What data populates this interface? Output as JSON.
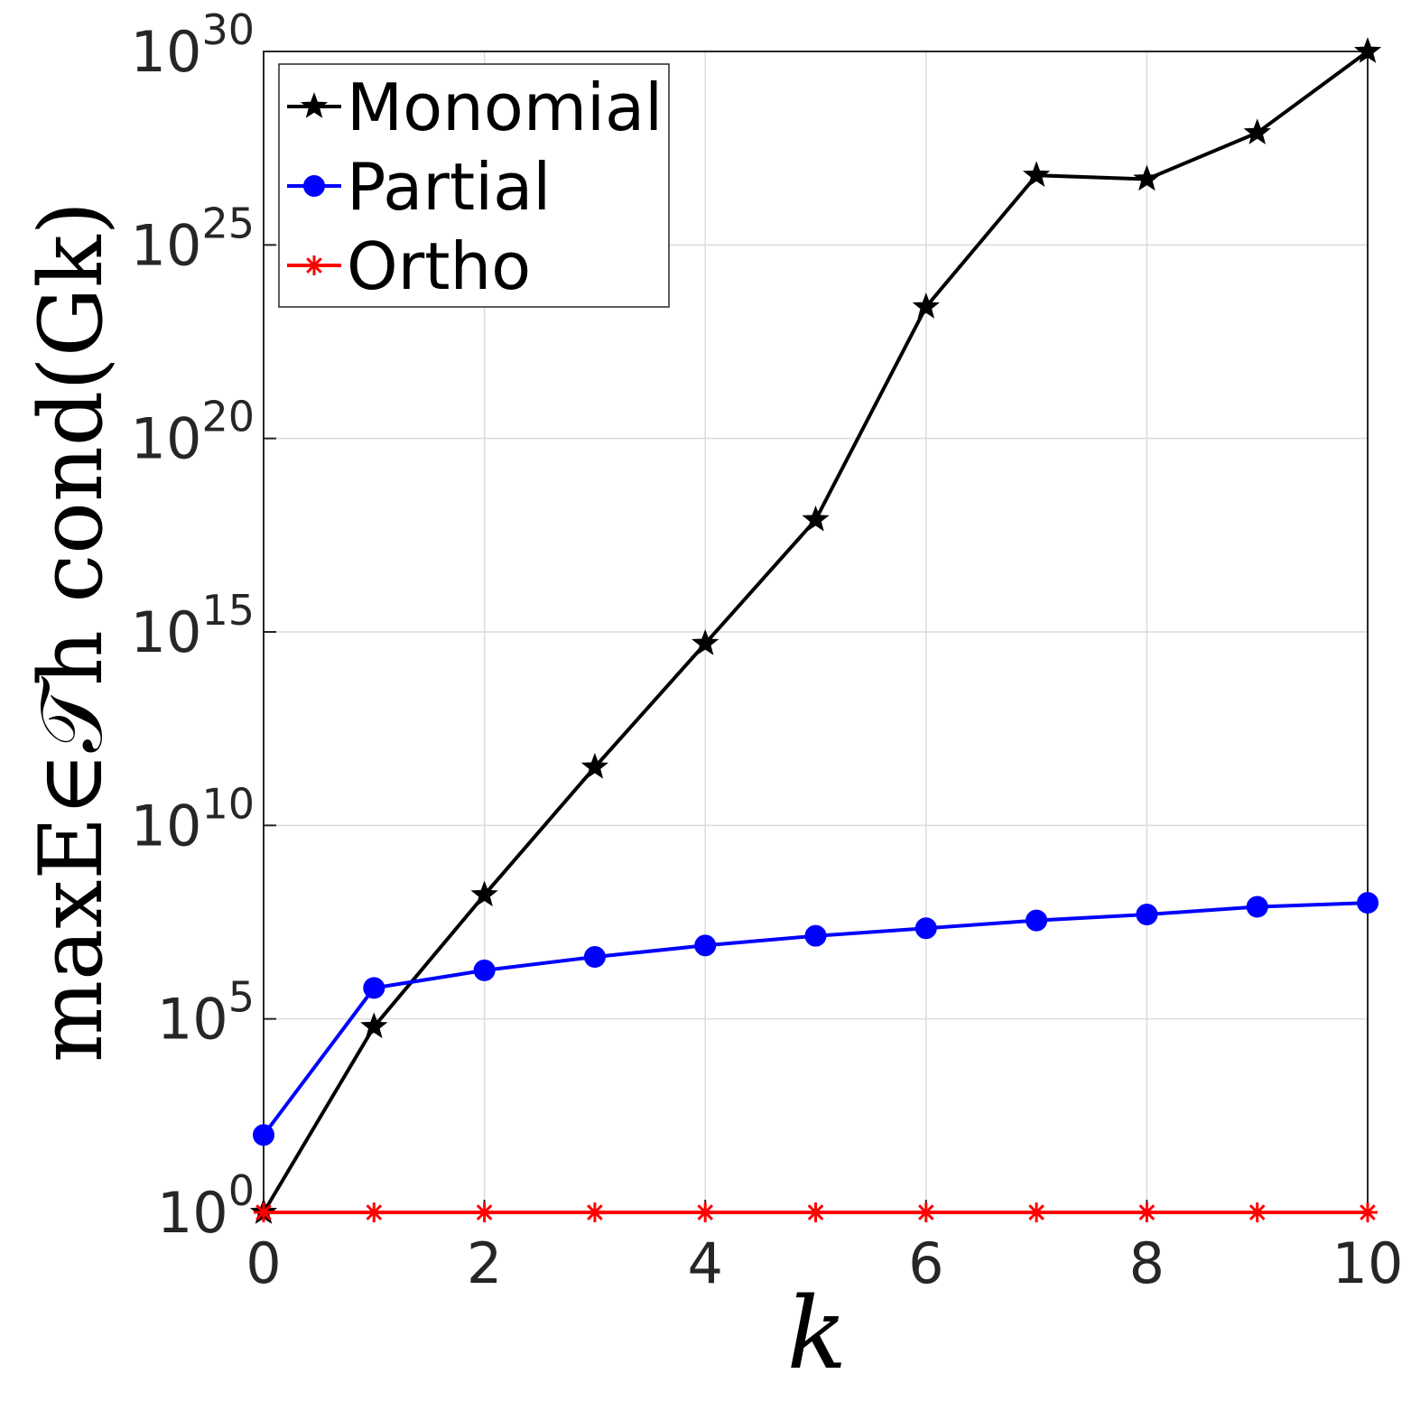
{
  "chart_data": {
    "type": "line",
    "xlabel": "k",
    "ylabel": "maxE∈𝒯h cond(Gk)",
    "x": [
      0,
      1,
      2,
      3,
      4,
      5,
      6,
      7,
      8,
      9,
      10
    ],
    "xlim": [
      0,
      10
    ],
    "xticks": [
      0,
      2,
      4,
      6,
      8,
      10
    ],
    "ylim": [
      1,
      1e+30
    ],
    "yscale": "log",
    "yticks": [
      {
        "value": 1,
        "label": "10^0"
      },
      {
        "value": 100000.0,
        "label": "10^5"
      },
      {
        "value": 10000000000.0,
        "label": "10^10"
      },
      {
        "value": 1000000000000000.0,
        "label": "10^15"
      },
      {
        "value": 1e+20,
        "label": "10^20"
      },
      {
        "value": 1e+25,
        "label": "10^25"
      },
      {
        "value": 1e+30,
        "label": "10^30"
      }
    ],
    "grid": true,
    "legend": "upper left",
    "series": [
      {
        "name": "Monomial",
        "color": "#000000",
        "marker": "star",
        "values": [
          1,
          63000.0,
          160000000.0,
          320000000000.0,
          500000000000000.0,
          7.9e+17,
          2.5e+23,
          6.3e+26,
          5e+26,
          7.9e+27,
          1e+30
        ]
      },
      {
        "name": "Partial",
        "color": "#0000ff",
        "marker": "circle",
        "values": [
          100,
          630000.0,
          1800000.0,
          4000000.0,
          7900000.0,
          14000000.0,
          22000000.0,
          35000000.0,
          50000000.0,
          79000000.0,
          100000000.0
        ]
      },
      {
        "name": "Ortho",
        "color": "#ff0000",
        "marker": "asterisk",
        "values": [
          1,
          1,
          1,
          1,
          1,
          1,
          1,
          1,
          1,
          1,
          1
        ]
      }
    ]
  }
}
